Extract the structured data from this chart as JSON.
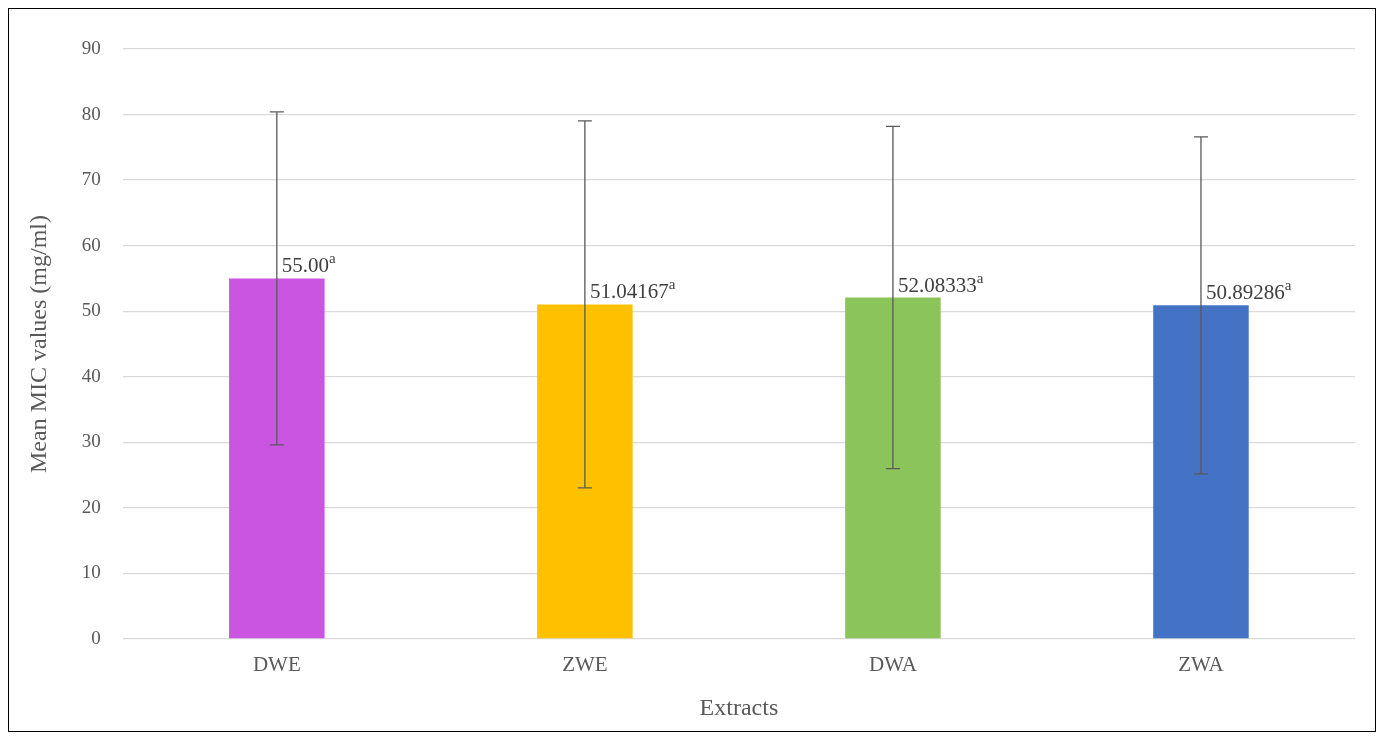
{
  "chart_data": {
    "type": "bar",
    "xlabel": "Extracts",
    "ylabel": "Mean MIC values (mg/ml)",
    "categories": [
      "DWE",
      "ZWE",
      "DWA",
      "ZWA"
    ],
    "values": [
      55,
      51.04167,
      52.08333,
      50.89286
    ],
    "colors": [
      "#c955e0",
      "#ffc000",
      "#8bc45a",
      "#4472c4"
    ],
    "errors": [
      25.4,
      28,
      26.1,
      25.7
    ],
    "value_labels": [
      "55.00$^{a}$",
      "51.04167$^{a}$",
      "52.08333$^{a}$",
      "50.89286$^{a}$"
    ],
    "ylim": [
      0,
      90
    ],
    "yticks": [
      0,
      10,
      20,
      30,
      40,
      50,
      60,
      70,
      80,
      90
    ],
    "grid": "y",
    "legend": false
  }
}
